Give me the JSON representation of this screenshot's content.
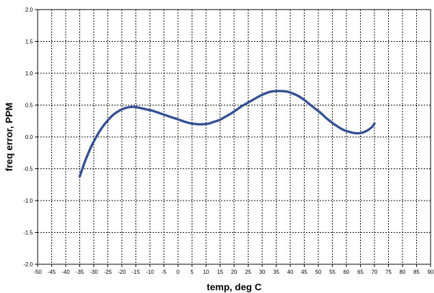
{
  "chart_data": {
    "type": "line",
    "title": "",
    "xlabel": "temp, deg C",
    "ylabel": "freq error, PPM",
    "xlim": [
      -50,
      90
    ],
    "ylim": [
      -2.0,
      2.0
    ],
    "x_ticks": [
      -50,
      -45,
      -40,
      -35,
      -30,
      -25,
      -20,
      -15,
      -10,
      -5,
      0,
      5,
      10,
      15,
      20,
      25,
      30,
      35,
      40,
      45,
      50,
      55,
      60,
      65,
      70,
      75,
      80,
      85,
      90
    ],
    "x_tick_labels": [
      "-50",
      "-45",
      "-40",
      "-35",
      "-30",
      "-25",
      "-20",
      "-15",
      "-10",
      "-5",
      "0",
      "5",
      "10",
      "15",
      "20",
      "25",
      "30",
      "35",
      "40",
      "45",
      "50",
      "55",
      "60",
      "65",
      "70",
      "75",
      "80",
      "85",
      "90"
    ],
    "y_ticks": [
      -2.0,
      -1.5,
      -1.0,
      -0.5,
      0.0,
      0.5,
      1.0,
      1.5,
      2.0
    ],
    "y_tick_labels": [
      "-2.0",
      "-1.5",
      "-1.0",
      "-0.5",
      "0.0",
      "0.5",
      "1.0",
      "1.5",
      "2.0"
    ],
    "grid": true,
    "legend": "none",
    "series": [
      {
        "color": "#2f4f9e",
        "x": [
          -35,
          -33,
          -31,
          -29,
          -27,
          -25,
          -23,
          -21,
          -19,
          -17,
          -15,
          -13,
          -11,
          -9,
          -7,
          -5,
          -3,
          -1,
          1,
          3,
          5,
          7,
          9,
          11,
          13,
          15,
          17,
          19,
          21,
          23,
          25,
          27,
          29,
          31,
          33,
          35,
          37,
          39,
          41,
          43,
          45,
          47,
          49,
          51,
          53,
          55,
          57,
          59,
          61,
          63,
          65,
          67,
          69,
          70
        ],
        "y": [
          -0.62,
          -0.37,
          -0.16,
          0.01,
          0.15,
          0.26,
          0.35,
          0.41,
          0.45,
          0.47,
          0.47,
          0.45,
          0.43,
          0.41,
          0.38,
          0.35,
          0.32,
          0.29,
          0.26,
          0.23,
          0.21,
          0.2,
          0.2,
          0.21,
          0.24,
          0.27,
          0.32,
          0.37,
          0.43,
          0.49,
          0.54,
          0.59,
          0.64,
          0.68,
          0.71,
          0.72,
          0.72,
          0.71,
          0.68,
          0.64,
          0.58,
          0.51,
          0.44,
          0.37,
          0.29,
          0.22,
          0.16,
          0.11,
          0.08,
          0.06,
          0.06,
          0.09,
          0.15,
          0.21
        ]
      }
    ]
  }
}
